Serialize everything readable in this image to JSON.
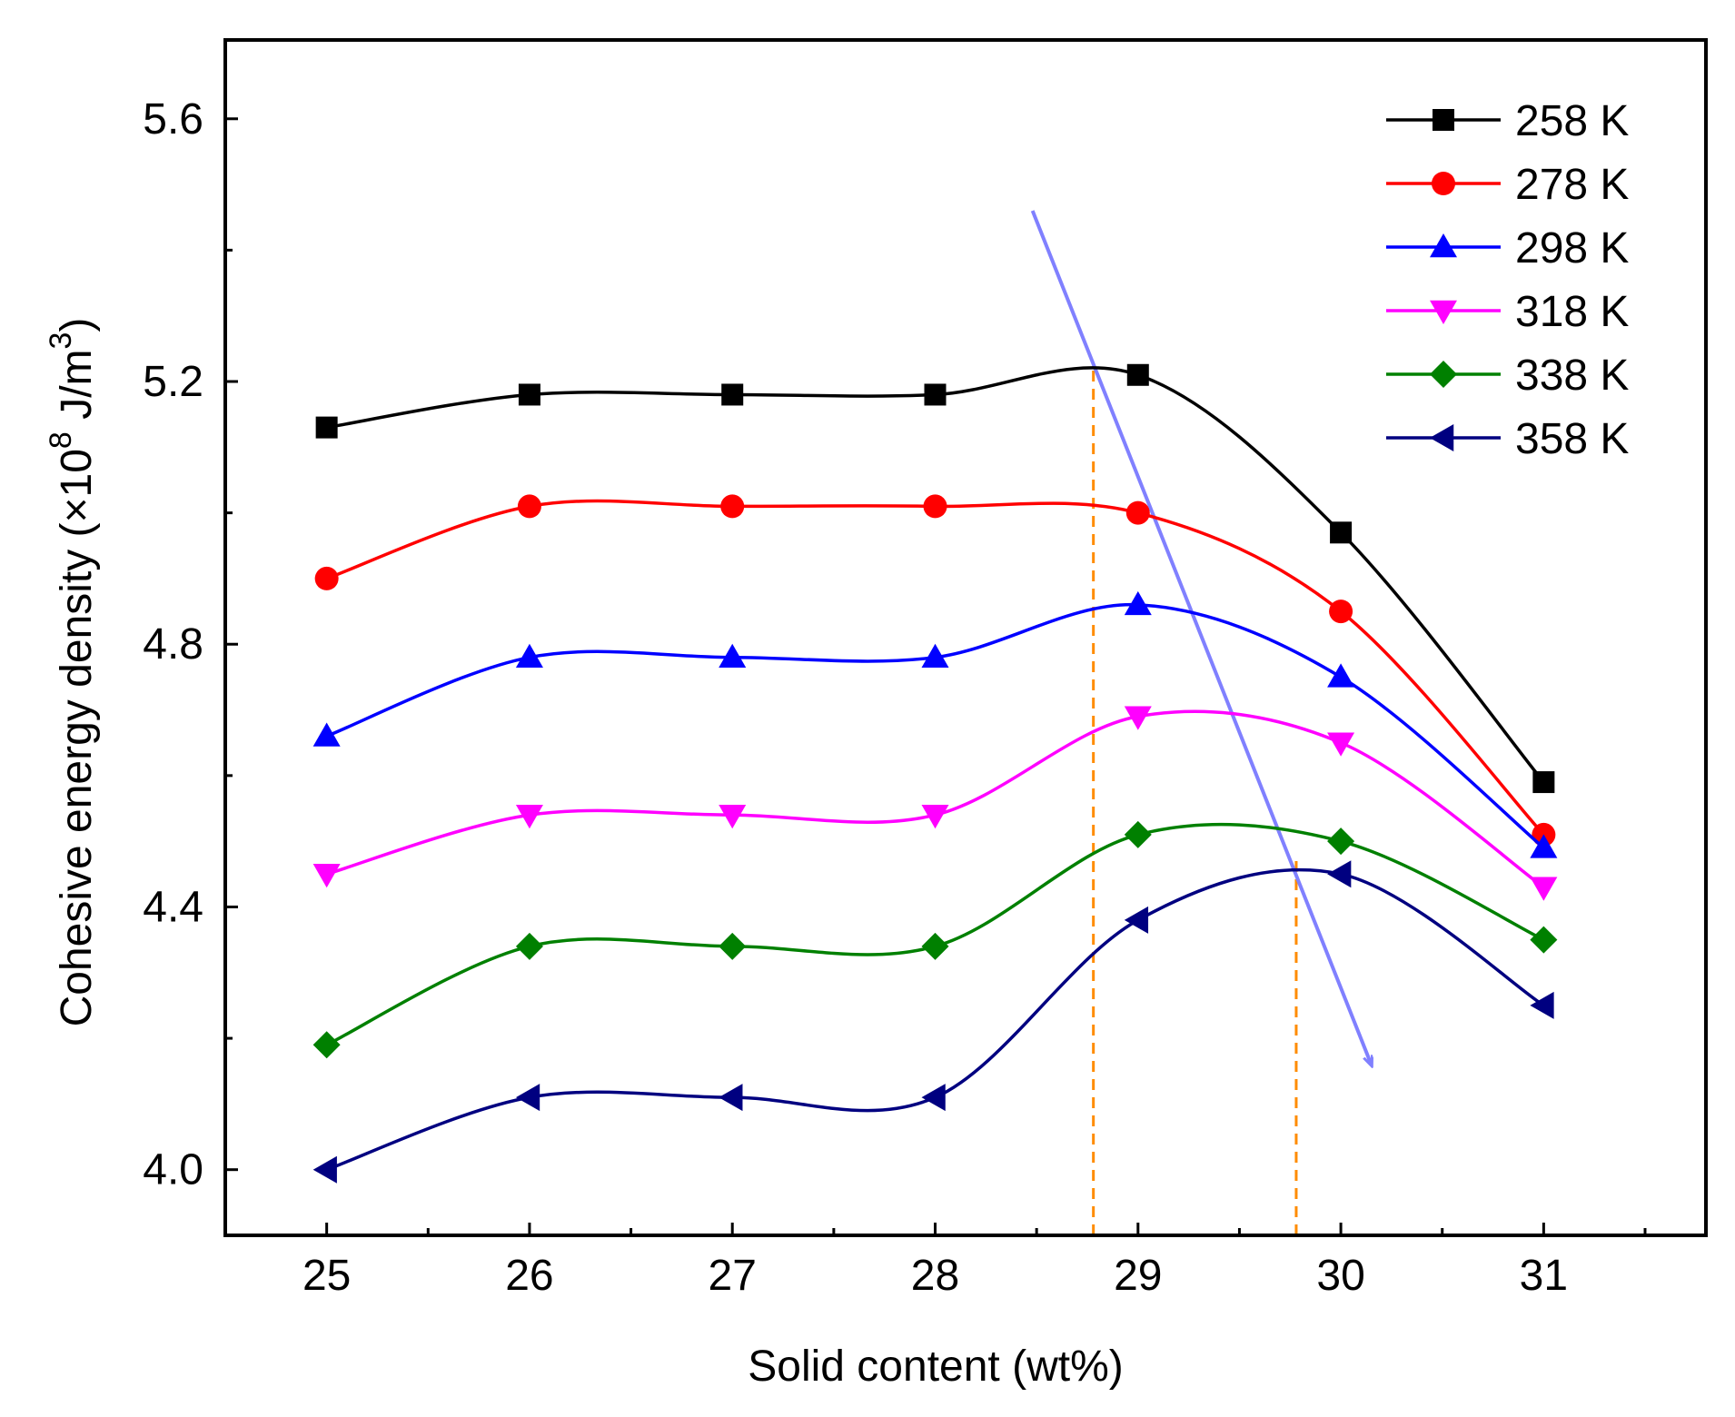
{
  "chart_data": {
    "type": "line",
    "title": "",
    "xlabel": "Solid content (wt%)",
    "ylabel": {
      "prefix": "Cohesive energy density (×10",
      "exp": "8",
      "unit": " J/m",
      "unit_exp": "3",
      "suffix": ")"
    },
    "xlim": [
      24.5,
      31.8
    ],
    "ylim": [
      3.9,
      5.72
    ],
    "x": [
      25,
      26,
      27,
      28,
      29,
      30,
      31
    ],
    "xticks": [
      "25",
      "26",
      "27",
      "28",
      "29",
      "30",
      "31"
    ],
    "yticks": [
      "4.0",
      "4.4",
      "4.8",
      "5.2",
      "5.6"
    ],
    "ytick_values": [
      4.0,
      4.4,
      4.8,
      5.2,
      5.6
    ],
    "grid": false,
    "legend_position": "top-right",
    "series": [
      {
        "name": "258 K",
        "color": "#000000",
        "marker": "square",
        "values": [
          5.13,
          5.18,
          5.18,
          5.18,
          5.21,
          4.97,
          4.59
        ]
      },
      {
        "name": "278 K",
        "color": "#ff0000",
        "marker": "circle",
        "values": [
          4.9,
          5.01,
          5.01,
          5.01,
          5.0,
          4.85,
          4.51
        ]
      },
      {
        "name": "298 K",
        "color": "#0000ff",
        "marker": "triangle-up",
        "values": [
          4.66,
          4.78,
          4.78,
          4.78,
          4.86,
          4.75,
          4.49
        ]
      },
      {
        "name": "318 K",
        "color": "#ff00ff",
        "marker": "triangle-down",
        "values": [
          4.45,
          4.54,
          4.54,
          4.54,
          4.69,
          4.65,
          4.43
        ]
      },
      {
        "name": "338 K",
        "color": "#008000",
        "marker": "diamond",
        "values": [
          4.19,
          4.34,
          4.34,
          4.34,
          4.51,
          4.5,
          4.35
        ]
      },
      {
        "name": "358 K",
        "color": "#000080",
        "marker": "triangle-left",
        "values": [
          4.0,
          4.11,
          4.11,
          4.11,
          4.38,
          4.45,
          4.25
        ]
      }
    ],
    "annotations": [
      {
        "type": "dashed-vline",
        "x": 28.78,
        "y_from": 3.9,
        "y_to": 5.22,
        "color": "#ff8c00"
      },
      {
        "type": "dashed-vline",
        "x": 29.78,
        "y_from": 3.9,
        "y_to": 4.48,
        "color": "#ff8c00"
      },
      {
        "type": "arrow",
        "x_from": 28.48,
        "y_from": 5.46,
        "x_to": 30.15,
        "y_to": 4.16,
        "color": "#8080ff"
      }
    ]
  }
}
